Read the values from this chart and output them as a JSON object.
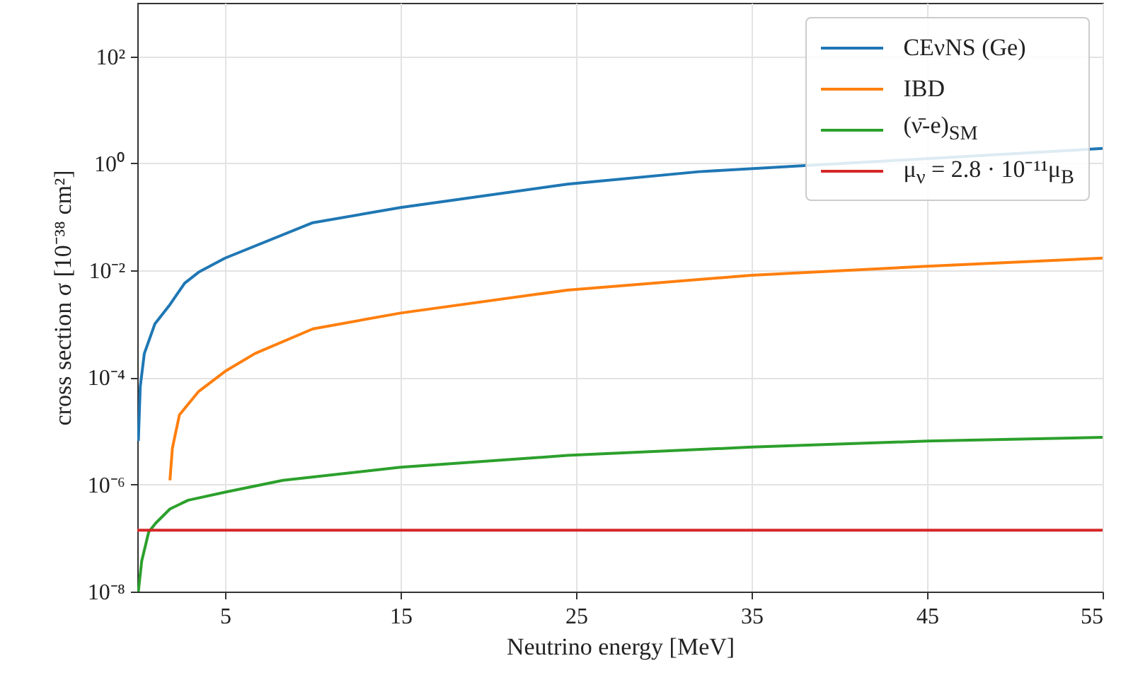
{
  "chart_data": {
    "type": "line",
    "xlabel": "Neutrino energy [MeV]",
    "ylabel": "cross section σ [10⁻³⁸ cm²]",
    "xlim": [
      0,
      55
    ],
    "ylim": [
      1e-08,
      1000
    ],
    "xticks": [
      5,
      15,
      25,
      35,
      45,
      55
    ],
    "yticks": [
      {
        "value": 1e-08,
        "label": "10⁻⁸"
      },
      {
        "value": 1e-06,
        "label": "10⁻⁶"
      },
      {
        "value": 0.0001,
        "label": "10⁻⁴"
      },
      {
        "value": 0.01,
        "label": "10⁻²"
      },
      {
        "value": 1,
        "label": "10⁰"
      },
      {
        "value": 100,
        "label": "10²"
      }
    ],
    "log": "y",
    "grid": true,
    "legend": "top right",
    "marker": "none",
    "line_style": "solid",
    "series": [
      {
        "name": "CEνNS (Ge)",
        "color": "#1f77b4",
        "x": [
          0.06,
          0.17,
          0.4,
          1,
          1.86,
          2.7,
          3.5,
          5,
          10,
          15,
          24.5,
          32,
          55
        ],
        "values": [
          6.5e-06,
          6.8e-05,
          0.00028,
          0.001,
          0.0023,
          0.0058,
          0.0093,
          0.017,
          0.078,
          0.15,
          0.41,
          0.7,
          1.9
        ]
      },
      {
        "name": "IBD",
        "color": "#ff7f0e",
        "x": [
          1.86,
          2,
          2.4,
          3.5,
          5,
          6.7,
          10,
          15,
          24.5,
          35,
          45,
          55
        ],
        "values": [
          1.2e-06,
          4.8e-06,
          2e-05,
          5.5e-05,
          0.00013,
          0.00028,
          0.00081,
          0.0016,
          0.0043,
          0.0081,
          0.012,
          0.017
        ]
      },
      {
        "name": "(ν̄-e)$_{SM}$",
        "color": "#2ca02c",
        "x": [
          0.06,
          0.25,
          0.65,
          1.05,
          1.86,
          2.9,
          5,
          8.3,
          15,
          24.5,
          35,
          45,
          55
        ],
        "values": [
          1e-08,
          3.7e-08,
          1.3e-07,
          1.9e-07,
          3.5e-07,
          5.1e-07,
          7.2e-07,
          1.2e-06,
          2.1e-06,
          3.5e-06,
          5e-06,
          6.5e-06,
          7.6e-06
        ]
      },
      {
        "name": "μ$_{ν}$ = 2.8 · 10⁻¹¹μ$_{B}$",
        "color": "#d62728",
        "x": [
          0,
          55
        ],
        "values": [
          1.4e-07,
          1.4e-07
        ]
      }
    ]
  }
}
